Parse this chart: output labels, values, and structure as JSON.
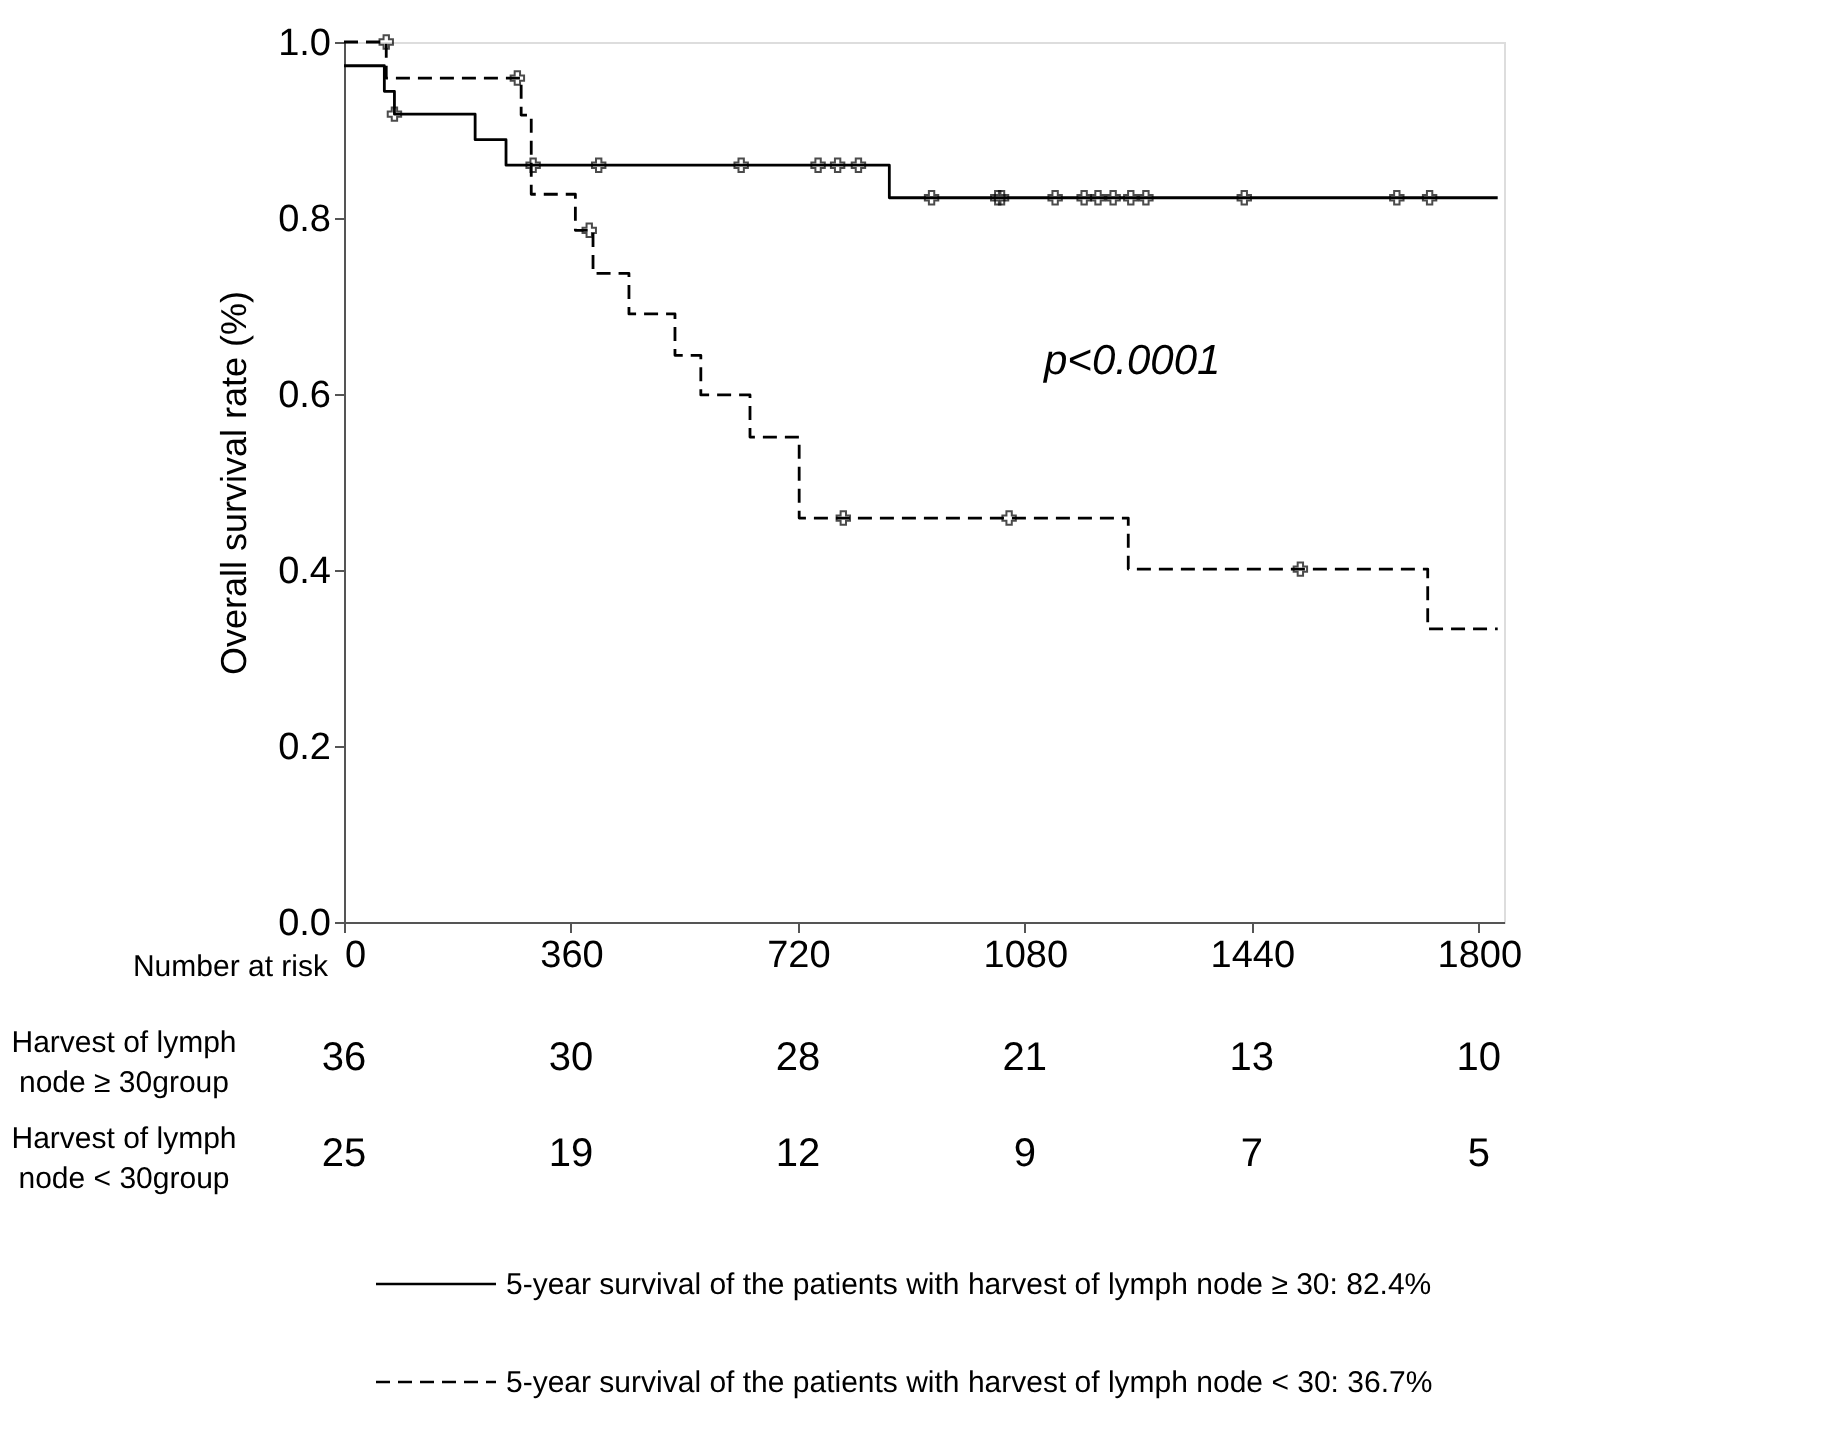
{
  "chart_data": {
    "type": "step",
    "ylabel": "Overall survival rate (%)",
    "xlim": [
      0,
      1840
    ],
    "xticks": [
      0,
      360,
      720,
      1080,
      1440,
      1800
    ],
    "ylim": [
      0,
      1
    ],
    "yticks": [
      {
        "value": 0,
        "label": "0.0"
      },
      0.2,
      0.4,
      0.6,
      0.8,
      {
        "value": 1,
        "label": "1.0"
      }
    ],
    "grid": false,
    "legend": "bottom",
    "marker": "none",
    "series": [
      {
        "name": "5-year survival of the patients with harvest of lymph node ≥ 30: 82.4%",
        "line_style": "solid",
        "color": "#000000",
        "x": [
          0,
          64,
          80,
          208,
          257,
          865,
          1830
        ],
        "values": [
          0.973,
          0.944,
          0.918,
          0.889,
          0.86,
          0.823,
          0.823
        ]
      },
      {
        "name": "5-year survival of the patients with harvest of lymph node < 30: 36.7%",
        "line_style": "dashed",
        "color": "#000000",
        "x": [
          0,
          67,
          281,
          297,
          367,
          395,
          452,
          525,
          566,
          644,
          722,
          1244,
          1719,
          1830
        ],
        "values": [
          1.0,
          0.959,
          0.917,
          0.827,
          0.786,
          0.737,
          0.691,
          0.644,
          0.599,
          0.551,
          0.459,
          0.401,
          0.333,
          0.333
        ]
      },
      {
        "type": "scatter",
        "marker": "cross",
        "color": "#000000",
        "x": [
          80,
          300,
          404,
          630,
          752,
          783,
          816,
          932,
          1037,
          1043,
          1128,
          1174,
          1196,
          1220,
          1248,
          1272,
          1428,
          1670,
          1722
        ],
        "values": [
          0.918,
          0.86,
          0.86,
          0.86,
          0.86,
          0.86,
          0.86,
          0.823,
          0.823,
          0.823,
          0.823,
          0.823,
          0.823,
          0.823,
          0.823,
          0.823,
          0.823,
          0.823,
          0.823
        ]
      },
      {
        "type": "scatter",
        "marker": "cross",
        "color": "#000000",
        "x": [
          67,
          275,
          389,
          792,
          1055,
          1517
        ],
        "values": [
          1.0,
          0.959,
          0.786,
          0.459,
          0.459,
          0.401
        ]
      }
    ],
    "annotations": [
      "p<0.0001",
      "Number at risk",
      "Harvest of lymph\nnode ≥ 30group",
      "36",
      "30",
      "28",
      "21",
      "13",
      "10",
      "Harvest of lymph\nnode < 30group",
      "25",
      "19",
      "12",
      "9",
      "7",
      "5"
    ]
  }
}
